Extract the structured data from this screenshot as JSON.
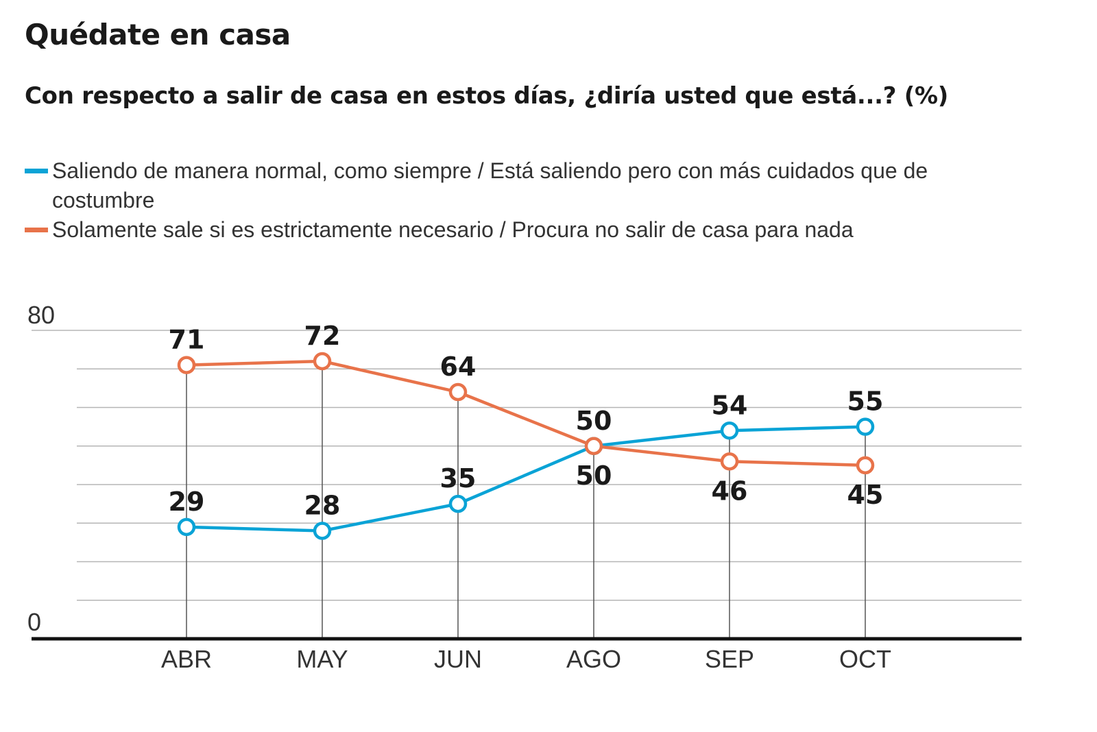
{
  "chart_data": {
    "type": "line",
    "title": "Quédate en casa",
    "subtitle": "Con respecto a salir de casa en estos días, ¿diría usted que está...?  (%)",
    "categories": [
      "ABR",
      "MAY",
      "JUN",
      "AGO",
      "SEP",
      "OCT"
    ],
    "series": [
      {
        "name": "Saliendo de manera normal, como siempre / Está saliendo pero con más cuidados que de costumbre",
        "color": "#0aa3d6",
        "values": [
          29,
          28,
          35,
          50,
          54,
          55
        ]
      },
      {
        "name": "Solamente sale si es estrictamente necesario / Procura no salir de casa para nada",
        "color": "#e8734a",
        "values": [
          71,
          72,
          64,
          50,
          46,
          45
        ]
      }
    ],
    "ylim": [
      0,
      80
    ],
    "yticks_labeled": [
      "0",
      "80"
    ],
    "ygrid_step": 10,
    "grid": true,
    "legend_position": "top-left"
  }
}
